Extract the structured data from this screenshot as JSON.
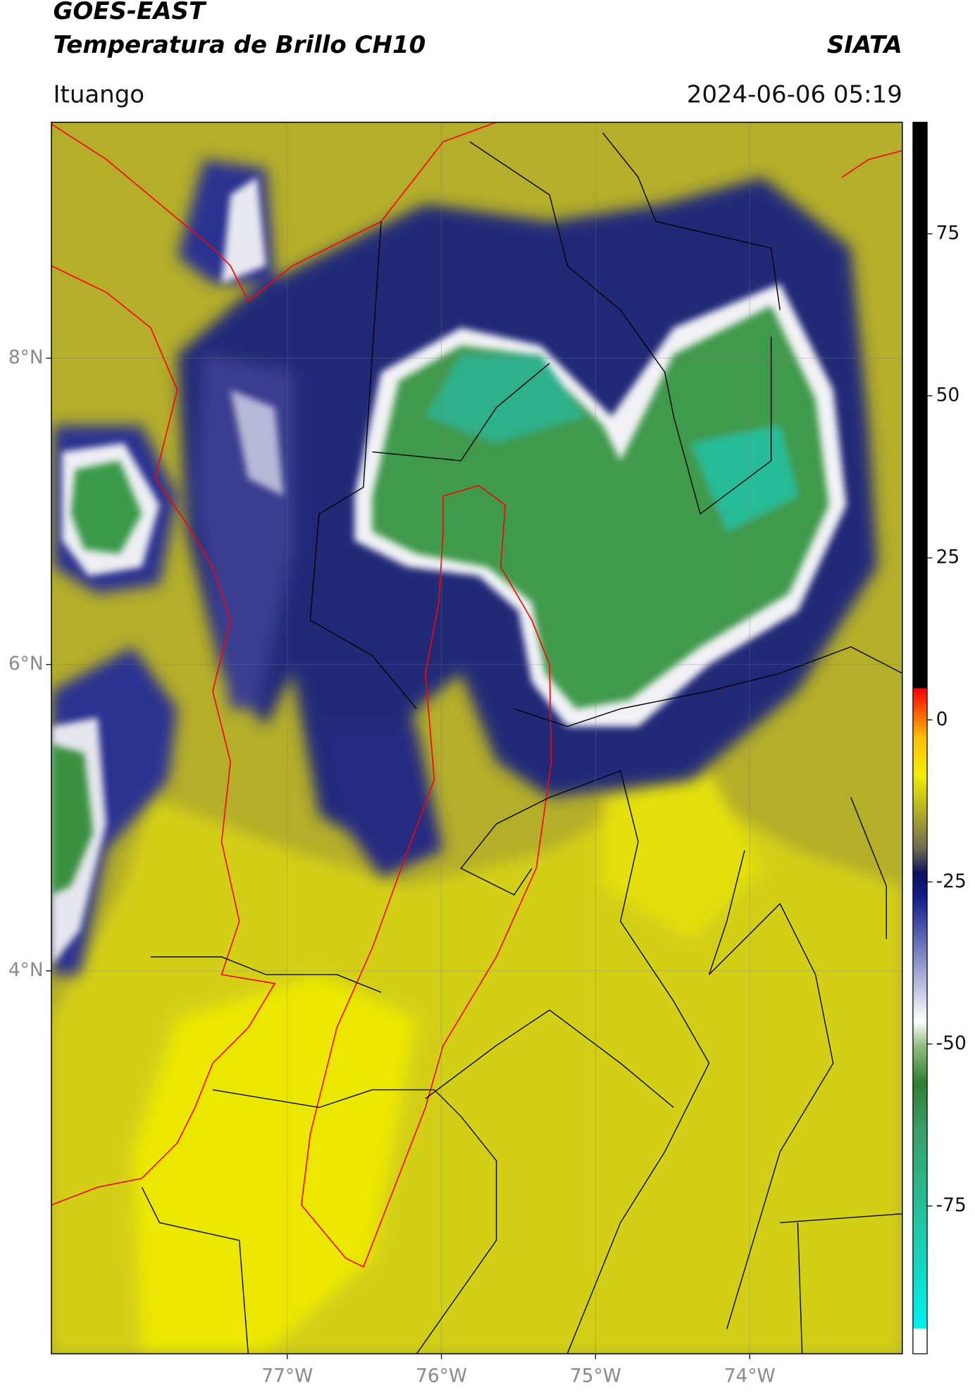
{
  "header": {
    "title": "GOES-EAST",
    "subtitle": "Temperatura de Brillo CH10",
    "source": "SIATA",
    "region": "Ituango",
    "datetime": "2024-06-06 05:19"
  },
  "map": {
    "lon_lim": [
      -78.53,
      -73.01
    ],
    "lat_lim": [
      1.5,
      9.54
    ],
    "lon_ticks": [
      {
        "value": -77,
        "label": "77°W"
      },
      {
        "value": -76,
        "label": "76°W"
      },
      {
        "value": -75,
        "label": "75°W"
      },
      {
        "value": -74,
        "label": "74°W"
      }
    ],
    "lat_ticks": [
      {
        "value": 8,
        "label": "8°N"
      },
      {
        "value": 6,
        "label": "6°N"
      },
      {
        "value": 4,
        "label": "4°N"
      }
    ]
  },
  "colorbar": {
    "lim": [
      -97.8,
      92.2
    ],
    "ticks": [
      75,
      50,
      25,
      0,
      -25,
      -50,
      -75
    ]
  }
}
